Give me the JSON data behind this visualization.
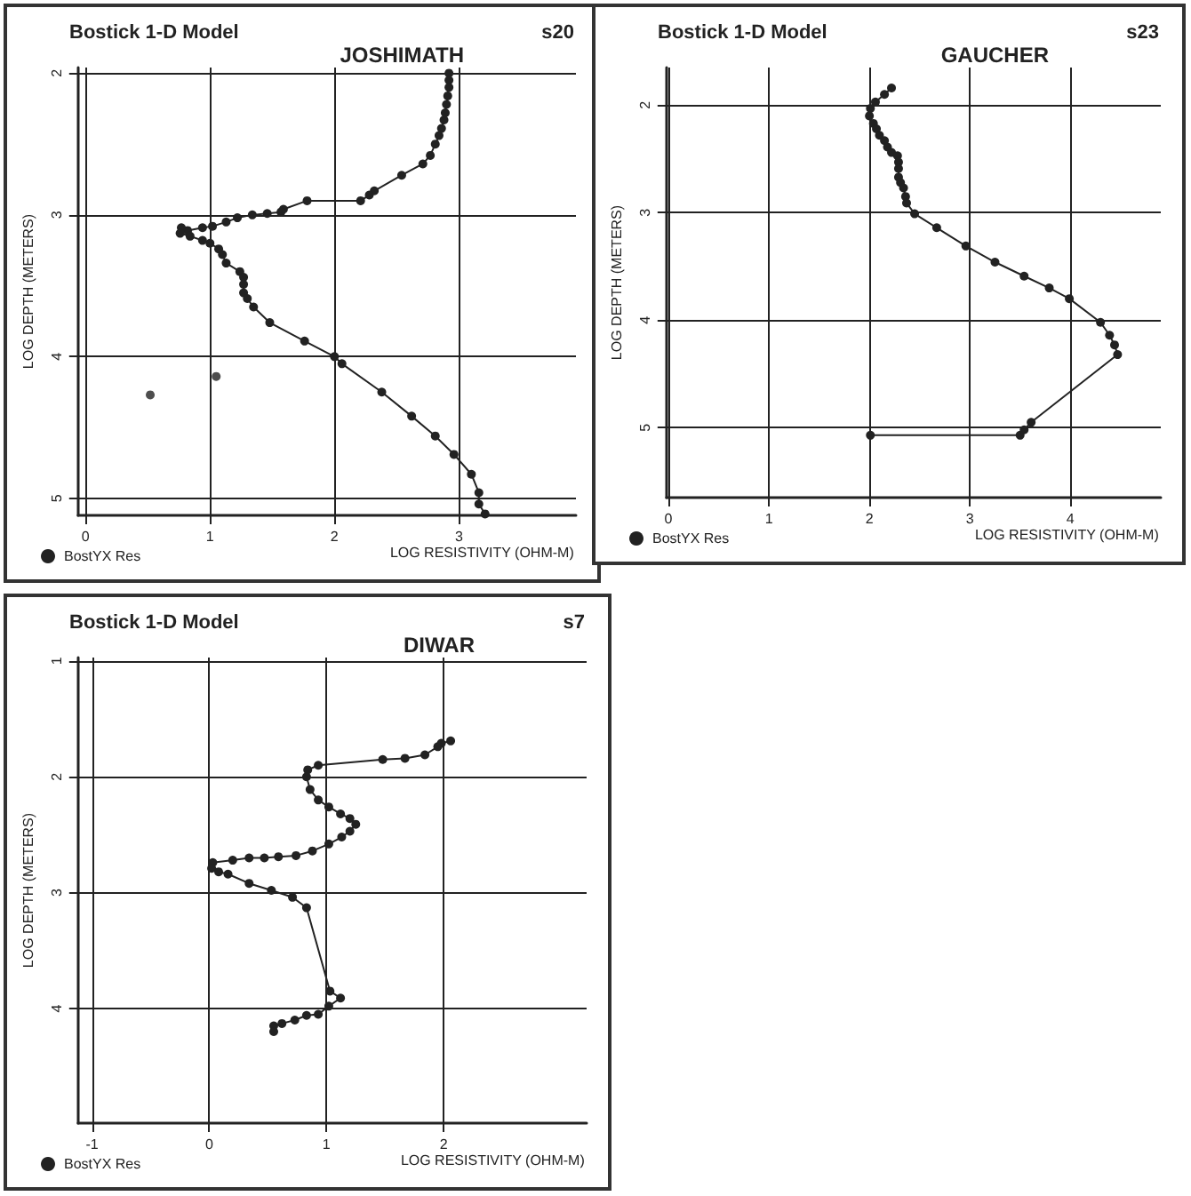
{
  "chart_data": [
    {
      "type": "line",
      "title": "Bostick 1-D Model",
      "subtitle": "JOSHIMATH",
      "annotations": [
        "s20"
      ],
      "xlabel": "LOG RESISTIVITY (OHM-M)",
      "ylabel": "LOG DEPTH (METERS)",
      "xlim": [
        -0.06,
        3.94
      ],
      "xticks": [
        0,
        1,
        2,
        3
      ],
      "ylim": [
        5.12,
        1.96
      ],
      "yticks": [
        2,
        3,
        4,
        5
      ],
      "grid": true,
      "legend": "bottom left",
      "marker": "circle",
      "line_style": "solid",
      "series": [
        {
          "name": "BostYX Res",
          "color": "#222222",
          "x": [
            2.92,
            2.92,
            2.92,
            2.91,
            2.9,
            2.89,
            2.88,
            2.86,
            2.84,
            2.81,
            2.77,
            2.71,
            2.54,
            2.32,
            2.28,
            2.21,
            1.78,
            1.59,
            1.57,
            1.46,
            1.34,
            1.22,
            1.13,
            1.02,
            0.94,
            0.82,
            0.77,
            0.76,
            0.84,
            0.94,
            1.0,
            1.07,
            1.1,
            1.13,
            1.24,
            1.27,
            1.27,
            1.27,
            1.3,
            1.35,
            1.48,
            1.76,
            2.0,
            2.06,
            2.38,
            2.62,
            2.81,
            2.96,
            3.1,
            3.16,
            3.16,
            3.21
          ],
          "values": [
            2.0,
            2.05,
            2.1,
            2.16,
            2.22,
            2.28,
            2.33,
            2.39,
            2.44,
            2.5,
            2.58,
            2.64,
            2.72,
            2.83,
            2.86,
            2.9,
            2.9,
            2.96,
            2.98,
            2.99,
            3.0,
            3.02,
            3.05,
            3.08,
            3.09,
            3.11,
            3.09,
            3.13,
            3.15,
            3.18,
            3.2,
            3.24,
            3.28,
            3.34,
            3.4,
            3.44,
            3.49,
            3.55,
            3.59,
            3.65,
            3.76,
            3.89,
            4.0,
            4.05,
            4.25,
            4.42,
            4.56,
            4.69,
            4.83,
            4.96,
            5.04,
            5.11
          ]
        },
        {
          "type": "scatter",
          "color": "#222222",
          "x": [
            1.05,
            0.52
          ],
          "values": [
            4.14,
            4.27
          ]
        }
      ]
    },
    {
      "type": "line",
      "title": "Bostick 1-D Model",
      "subtitle": "GAUCHER",
      "annotations": [
        "s23"
      ],
      "xlabel": "LOG RESISTIVITY (OHM-M)",
      "ylabel": "LOG DEPTH (METERS)",
      "xlim": [
        -0.02,
        4.9
      ],
      "xticks": [
        0,
        1,
        2,
        3,
        4
      ],
      "ylim": [
        5.65,
        1.65
      ],
      "yticks": [
        2,
        3,
        4,
        5
      ],
      "grid": true,
      "legend": "bottom left",
      "marker": "circle",
      "line_style": "solid",
      "series": [
        {
          "name": "BostYX Res",
          "color": "#222222",
          "x": [
            2.22,
            2.15,
            2.06,
            2.01,
            2.0,
            2.04,
            2.07,
            2.1,
            2.15,
            2.18,
            2.22,
            2.28,
            2.29,
            2.29,
            2.29,
            2.31,
            2.34,
            2.36,
            2.37,
            2.45,
            2.67,
            2.96,
            3.25,
            3.54,
            3.79,
            3.99,
            4.3,
            4.39,
            4.44,
            4.47,
            3.61,
            3.54,
            3.5,
            2.01
          ],
          "values": [
            1.84,
            1.9,
            1.97,
            2.03,
            2.1,
            2.17,
            2.22,
            2.28,
            2.33,
            2.39,
            2.44,
            2.47,
            2.53,
            2.59,
            2.67,
            2.72,
            2.77,
            2.85,
            2.91,
            3.01,
            3.14,
            3.31,
            3.46,
            3.59,
            3.7,
            3.8,
            4.02,
            4.14,
            4.23,
            4.32,
            4.95,
            5.02,
            5.07,
            5.07
          ]
        }
      ]
    },
    {
      "type": "line",
      "title": "Bostick 1-D Model",
      "subtitle": "DIWAR",
      "annotations": [
        "s7"
      ],
      "xlabel": "LOG RESISTIVITY (OHM-M)",
      "ylabel": "LOG DEPTH (METERS)",
      "xlim": [
        -1.12,
        3.22
      ],
      "xticks": [
        -1,
        0,
        1,
        2
      ],
      "ylim": [
        4.99,
        0.97
      ],
      "yticks": [
        1,
        2,
        3,
        4
      ],
      "grid": true,
      "legend": "bottom left",
      "marker": "circle",
      "line_style": "solid",
      "series": [
        {
          "name": "BostYX Res",
          "color": "#222222",
          "x": [
            2.06,
            1.98,
            1.95,
            1.84,
            1.67,
            1.48,
            0.93,
            0.84,
            0.83,
            0.86,
            0.93,
            1.02,
            1.12,
            1.2,
            1.25,
            1.2,
            1.13,
            1.02,
            0.88,
            0.74,
            0.59,
            0.47,
            0.34,
            0.2,
            0.03,
            0.02,
            0.08,
            0.16,
            0.34,
            0.53,
            0.71,
            0.83,
            1.03,
            1.12,
            1.02,
            0.93,
            0.83,
            0.73,
            0.62,
            0.55,
            0.55
          ],
          "values": [
            1.69,
            1.71,
            1.74,
            1.81,
            1.84,
            1.85,
            1.9,
            1.94,
            2.0,
            2.11,
            2.2,
            2.26,
            2.32,
            2.36,
            2.41,
            2.47,
            2.52,
            2.58,
            2.64,
            2.68,
            2.69,
            2.7,
            2.7,
            2.72,
            2.74,
            2.79,
            2.82,
            2.84,
            2.92,
            2.98,
            3.04,
            3.13,
            3.85,
            3.91,
            3.98,
            4.05,
            4.06,
            4.1,
            4.13,
            4.15,
            4.2
          ]
        }
      ]
    }
  ]
}
